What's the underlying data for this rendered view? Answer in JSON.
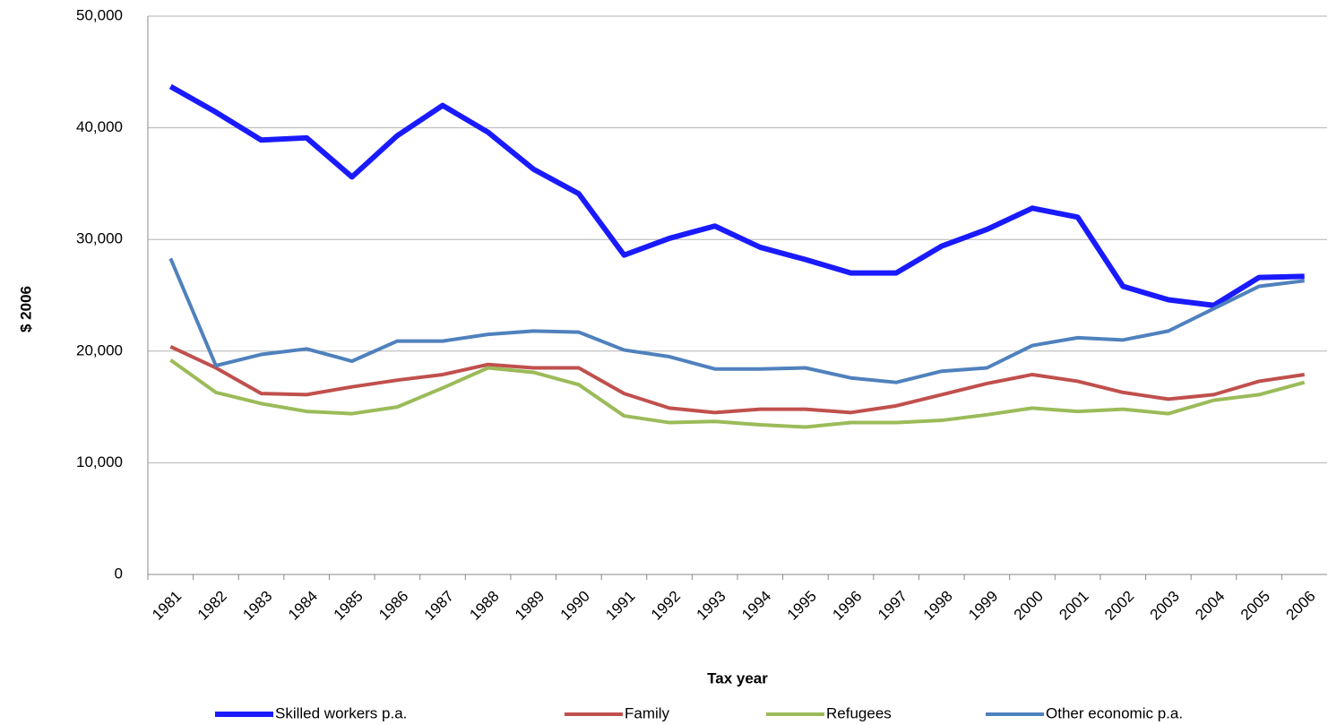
{
  "chart_data": {
    "type": "line",
    "y_label": "$ 2006",
    "x_label": "Tax year",
    "categories": [
      "1981",
      "1982",
      "1983",
      "1984",
      "1985",
      "1986",
      "1987",
      "1988",
      "1989",
      "1990",
      "1991",
      "1992",
      "1993",
      "1994",
      "1995",
      "1996",
      "1997",
      "1998",
      "1999",
      "2000",
      "2001",
      "2002",
      "2003",
      "2004",
      "2005",
      "2006"
    ],
    "series": [
      {
        "name": "Skilled workers p.a.",
        "color": "#1a1aff",
        "width": 6,
        "values": [
          43700,
          41400,
          38900,
          39100,
          35600,
          39300,
          42000,
          39600,
          36300,
          34100,
          28600,
          30100,
          31200,
          29300,
          28200,
          27000,
          27000,
          29400,
          30900,
          32800,
          32000,
          25800,
          24600,
          24100,
          26600,
          26700
        ]
      },
      {
        "name": "Family",
        "color": "#c0504d",
        "width": 4,
        "values": [
          20400,
          18500,
          16200,
          16100,
          16800,
          17400,
          17900,
          18800,
          18500,
          18500,
          16200,
          14900,
          14500,
          14800,
          14800,
          14500,
          15100,
          16100,
          17100,
          17900,
          17300,
          16300,
          15700,
          16100,
          17300,
          17900
        ]
      },
      {
        "name": "Refugees",
        "color": "#9bbb59",
        "width": 4,
        "values": [
          19200,
          16300,
          15300,
          14600,
          14400,
          15000,
          16700,
          18500,
          18100,
          17000,
          14200,
          13600,
          13700,
          13400,
          13200,
          13600,
          13600,
          13800,
          14300,
          14900,
          14600,
          14800,
          14400,
          15600,
          16100,
          17200
        ]
      },
      {
        "name": "Other economic p.a.",
        "color": "#4f81bd",
        "width": 4,
        "values": [
          28300,
          18700,
          19700,
          20200,
          19100,
          20900,
          20900,
          21500,
          21800,
          21700,
          20100,
          19500,
          18400,
          18400,
          18500,
          17600,
          17200,
          18200,
          18500,
          20500,
          21200,
          21000,
          21800,
          23800,
          25800,
          26300
        ]
      }
    ],
    "ylim": [
      0,
      50000
    ],
    "yticks": [
      0,
      {
        "value": 10000,
        "label": "10,000"
      },
      {
        "value": 20000,
        "label": "20,000"
      },
      {
        "value": 30000,
        "label": "30,000"
      },
      {
        "value": 40000,
        "label": "40,000"
      },
      {
        "value": 50000,
        "label": "50,000"
      }
    ],
    "grid": true
  }
}
